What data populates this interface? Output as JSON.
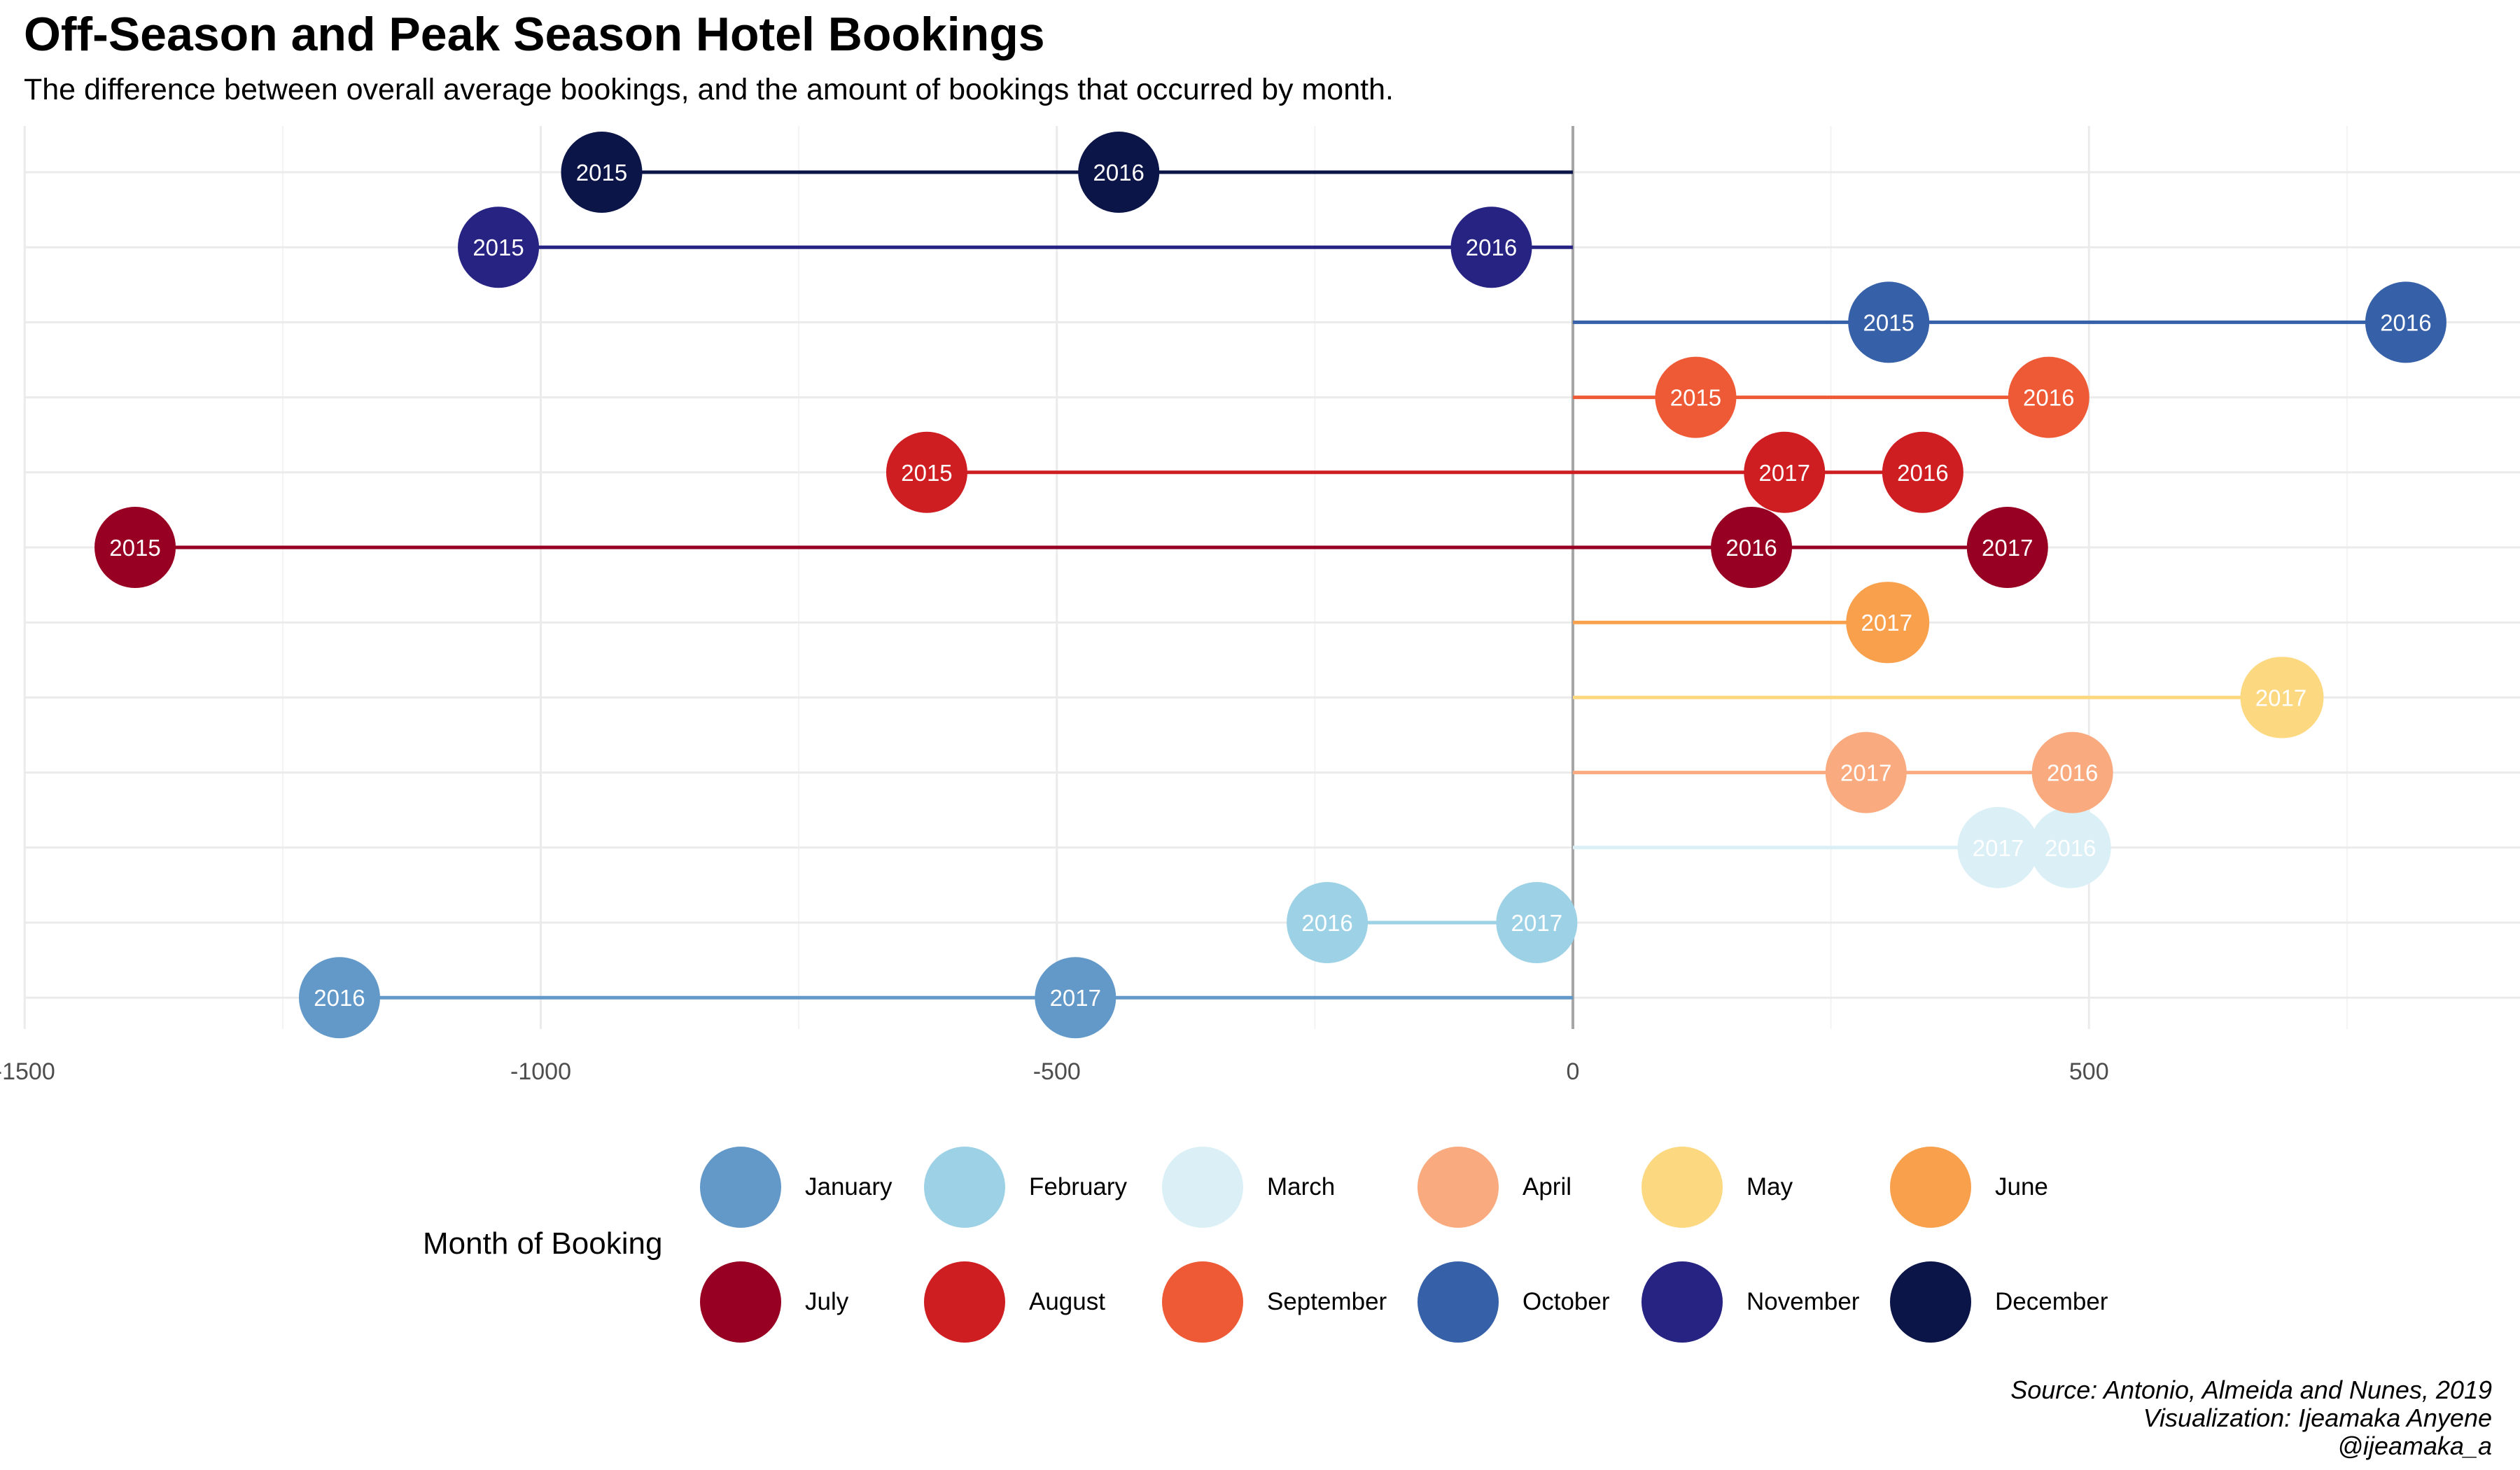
{
  "title": "Off-Season and Peak Season Hotel Bookings",
  "subtitle": "The difference between overall average bookings, and the amount of bookings that occurred by month.",
  "caption": [
    "Source: Antonio, Almeida and Nunes, 2019",
    "Visualization: Ijeamaka Anyene",
    "@ijeamaka_a"
  ],
  "legend_title": "Month of Booking",
  "chart_data": {
    "type": "scatter",
    "title": "Off-Season and Peak Season Hotel Bookings",
    "subtitle": "The difference between overall average bookings, and the amount of bookings that occurred by month.",
    "xlabel": "",
    "ylabel": "",
    "xlim": [
      -1500,
      910
    ],
    "x_ticks": [
      -1500,
      -1000,
      -500,
      0,
      500
    ],
    "grid": true,
    "legend": {
      "title": "Month of Booking",
      "placement": "bottom"
    },
    "series": [
      {
        "name": "January",
        "color": "#6399C8",
        "points": [
          {
            "year": "2016",
            "x": -1195
          },
          {
            "year": "2017",
            "x": -482
          }
        ]
      },
      {
        "name": "February",
        "color": "#9DD2E6",
        "points": [
          {
            "year": "2016",
            "x": -238
          },
          {
            "year": "2017",
            "x": -35
          }
        ]
      },
      {
        "name": "March",
        "color": "#DAEFF6",
        "points": [
          {
            "year": "2016",
            "x": 482
          },
          {
            "year": "2017",
            "x": 412
          }
        ]
      },
      {
        "name": "April",
        "color": "#F9AB7F",
        "points": [
          {
            "year": "2016",
            "x": 484
          },
          {
            "year": "2017",
            "x": 284
          }
        ]
      },
      {
        "name": "May",
        "color": "#FCD981",
        "points": [
          {
            "year": "2016",
            "x": 688
          },
          {
            "year": "2017",
            "x": 686
          }
        ]
      },
      {
        "name": "June",
        "color": "#F9A04D",
        "points": [
          {
            "year": "2016",
            "x": 306
          },
          {
            "year": "2017",
            "x": 304
          }
        ]
      },
      {
        "name": "July",
        "color": "#970022",
        "points": [
          {
            "year": "2015",
            "x": -1393
          },
          {
            "year": "2016",
            "x": 173
          },
          {
            "year": "2017",
            "x": 421
          }
        ]
      },
      {
        "name": "August",
        "color": "#CF1E22",
        "points": [
          {
            "year": "2015",
            "x": -626
          },
          {
            "year": "2016",
            "x": 339
          },
          {
            "year": "2017",
            "x": 205
          }
        ]
      },
      {
        "name": "September",
        "color": "#EE5936",
        "points": [
          {
            "year": "2015",
            "x": 119
          },
          {
            "year": "2016",
            "x": 461
          }
        ]
      },
      {
        "name": "October",
        "color": "#3661A9",
        "points": [
          {
            "year": "2015",
            "x": 306
          },
          {
            "year": "2016",
            "x": 807
          }
        ]
      },
      {
        "name": "November",
        "color": "#262383",
        "points": [
          {
            "year": "2015",
            "x": -1041
          },
          {
            "year": "2016",
            "x": -79
          }
        ]
      },
      {
        "name": "December",
        "color": "#0C1548",
        "points": [
          {
            "year": "2015",
            "x": -941
          },
          {
            "year": "2016",
            "x": -440
          }
        ]
      }
    ]
  }
}
